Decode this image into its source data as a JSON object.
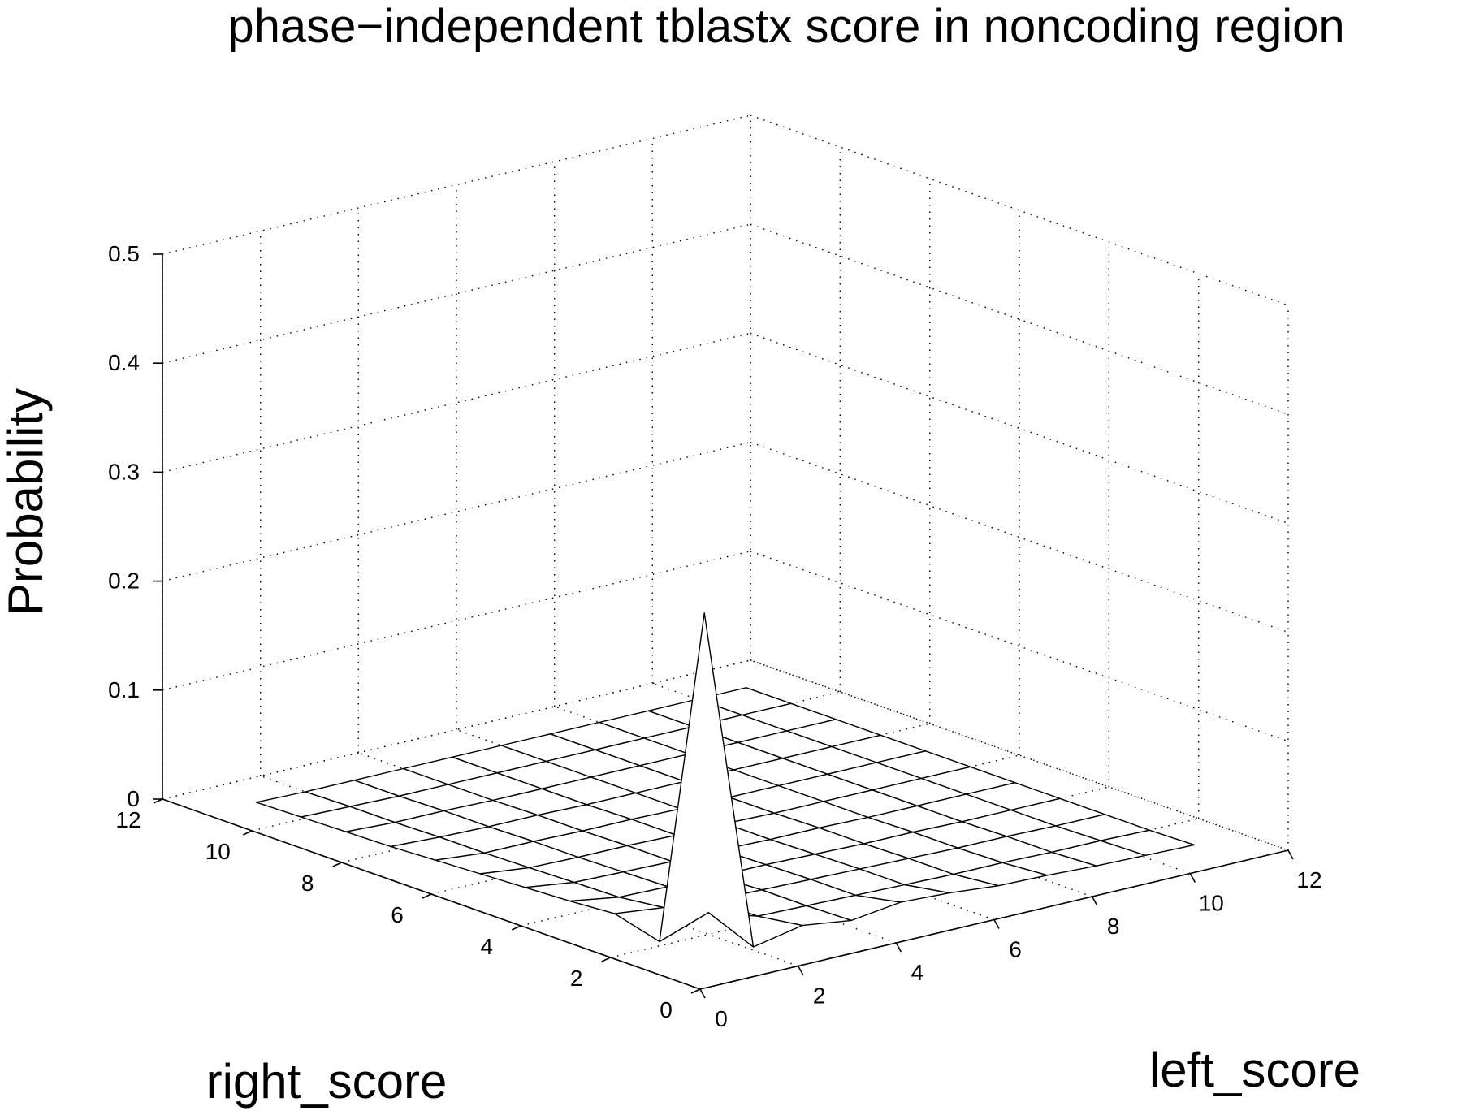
{
  "chart_data": {
    "type": "surface",
    "title": "phase−independent tblastx score in noncoding region",
    "xlabel": "left_score",
    "ylabel": "right_score",
    "zlabel": "Probability",
    "xlim": [
      0,
      12
    ],
    "ylim": [
      0,
      12
    ],
    "zlim": [
      0,
      0.5
    ],
    "x_ticks": [
      "0",
      "2",
      "4",
      "6",
      "8",
      "10",
      "12"
    ],
    "y_ticks": [
      "0",
      "2",
      "4",
      "6",
      "8",
      "10",
      "12"
    ],
    "z_ticks": [
      "0",
      "0.1",
      "0.2",
      "0.3",
      "0.4",
      "0.5"
    ],
    "grid": true,
    "x": [
      1,
      2,
      3,
      4,
      5,
      6,
      7,
      8,
      9,
      10,
      11
    ],
    "y": [
      1,
      2,
      3,
      4,
      5,
      6,
      7,
      8,
      9,
      10,
      11
    ],
    "z": [
      [
        0.32,
        0.003,
        0.012,
        0.006,
        0.012,
        0.01,
        0.006,
        0.005,
        0.003,
        0.002,
        0.001
      ],
      [
        0.004,
        0.02,
        0.006,
        0.005,
        0.004,
        0.003,
        0.002,
        0.002,
        0.001,
        0.001,
        0.0
      ],
      [
        0.015,
        0.01,
        0.006,
        0.005,
        0.004,
        0.003,
        0.002,
        0.001,
        0.001,
        0.0,
        0.0
      ],
      [
        0.012,
        0.005,
        0.004,
        0.003,
        0.003,
        0.002,
        0.001,
        0.001,
        0.0,
        0.0,
        0.0
      ],
      [
        0.01,
        0.004,
        0.003,
        0.002,
        0.002,
        0.001,
        0.001,
        0.0,
        0.0,
        0.0,
        0.0
      ],
      [
        0.008,
        0.003,
        0.002,
        0.002,
        0.001,
        0.001,
        0.0,
        0.0,
        0.0,
        0.0,
        0.0
      ],
      [
        0.006,
        0.002,
        0.002,
        0.001,
        0.001,
        0.0,
        0.0,
        0.0,
        0.0,
        0.0,
        0.0
      ],
      [
        0.004,
        0.002,
        0.001,
        0.001,
        0.0,
        0.0,
        0.0,
        0.0,
        0.0,
        0.0,
        0.0
      ],
      [
        0.003,
        0.001,
        0.001,
        0.0,
        0.0,
        0.0,
        0.0,
        0.0,
        0.0,
        0.0,
        0.0
      ],
      [
        0.002,
        0.001,
        0.0,
        0.0,
        0.0,
        0.0,
        0.0,
        0.0,
        0.0,
        0.0,
        0.0
      ],
      [
        0.001,
        0.0,
        0.0,
        0.0,
        0.0,
        0.0,
        0.0,
        0.0,
        0.0,
        0.0,
        0.0
      ]
    ]
  }
}
